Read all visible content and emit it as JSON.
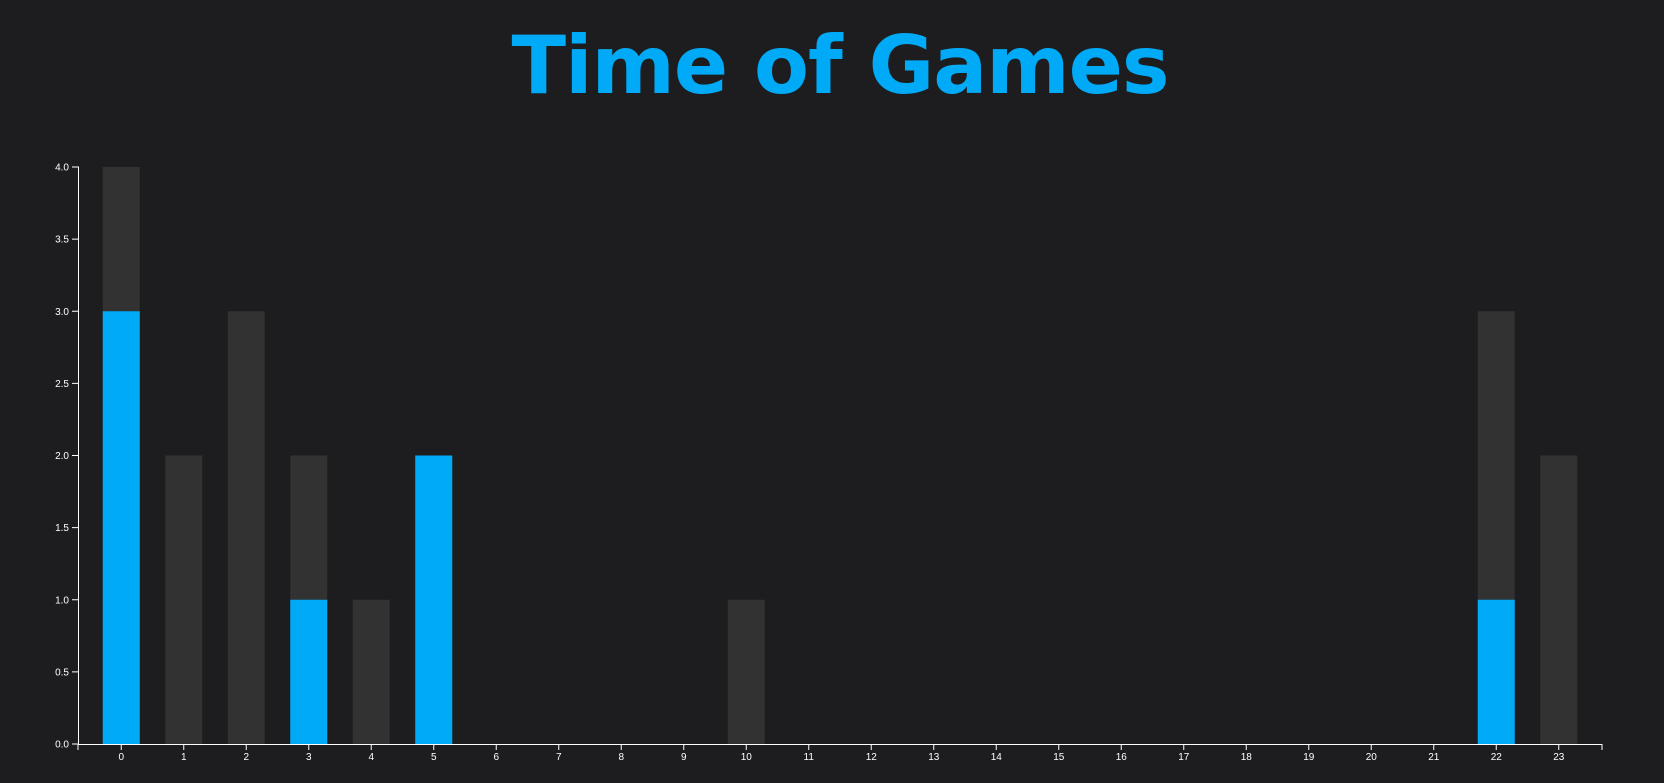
{
  "title": "Time of Games",
  "colors": {
    "background": "#1d1d1f",
    "title": "#00aaf7",
    "bar_total": "#323232",
    "bar_highlight": "#00aaf7",
    "axis": "#ffffff"
  },
  "chart_data": {
    "type": "bar",
    "stacked_overlay": true,
    "categories": [
      "0",
      "1",
      "2",
      "3",
      "4",
      "5",
      "6",
      "7",
      "8",
      "9",
      "10",
      "11",
      "12",
      "13",
      "14",
      "15",
      "16",
      "17",
      "18",
      "19",
      "20",
      "21",
      "22",
      "23"
    ],
    "series": [
      {
        "values": [
          4,
          2,
          3,
          2,
          1,
          2,
          0,
          0,
          0,
          0,
          1,
          0,
          0,
          0,
          0,
          0,
          0,
          0,
          0,
          0,
          0,
          0,
          3,
          2
        ]
      },
      {
        "values": [
          3,
          0,
          0,
          1,
          0,
          2,
          0,
          0,
          0,
          0,
          0,
          0,
          0,
          0,
          0,
          0,
          0,
          0,
          0,
          0,
          0,
          0,
          1,
          0
        ]
      }
    ],
    "y_ticks": [
      "0.0",
      "0.5",
      "1.0",
      "1.5",
      "2.0",
      "2.5",
      "3.0",
      "3.5",
      "4.0"
    ],
    "ylim": [
      0,
      4
    ],
    "xlabel": "",
    "ylabel": "",
    "title": "Time of Games",
    "grid": false,
    "legend": "none"
  }
}
